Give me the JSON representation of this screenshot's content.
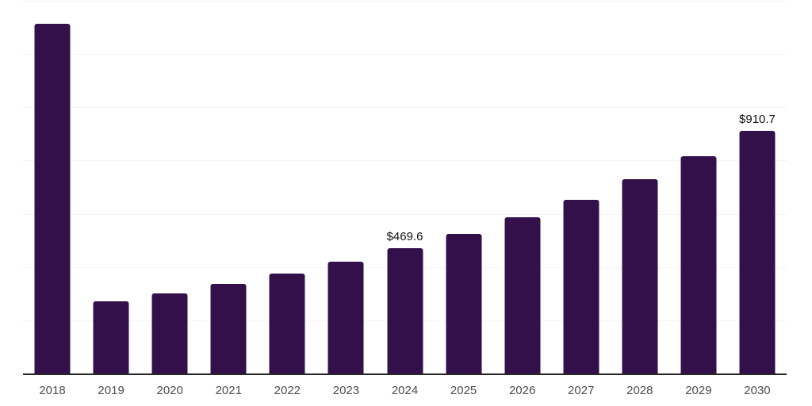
{
  "chart_data": {
    "type": "bar",
    "title": "",
    "xlabel": "",
    "ylabel": "",
    "categories": [
      "2018",
      "2019",
      "2020",
      "2021",
      "2022",
      "2023",
      "2024",
      "2025",
      "2026",
      "2027",
      "2028",
      "2029",
      "2030"
    ],
    "values": [
      1313.0,
      270.3,
      301.9,
      337.1,
      376.4,
      420.5,
      469.6,
      524.4,
      585.6,
      653.9,
      730.2,
      815.4,
      910.7
    ],
    "point_labels": [
      "",
      "",
      "",
      "",
      "",
      "",
      "$469.6",
      "",
      "",
      "",
      "",
      "",
      "$910.7"
    ],
    "ylim": [
      0,
      1400
    ],
    "grid_step": 200,
    "grid": true,
    "legend": "none"
  },
  "colors": {
    "background": "#ffffff",
    "bar": "#34104a",
    "gridline": "#f4f4f4",
    "axis_line": "#262626",
    "tick_label": "#4d4d4d",
    "value_label": "#111111"
  }
}
